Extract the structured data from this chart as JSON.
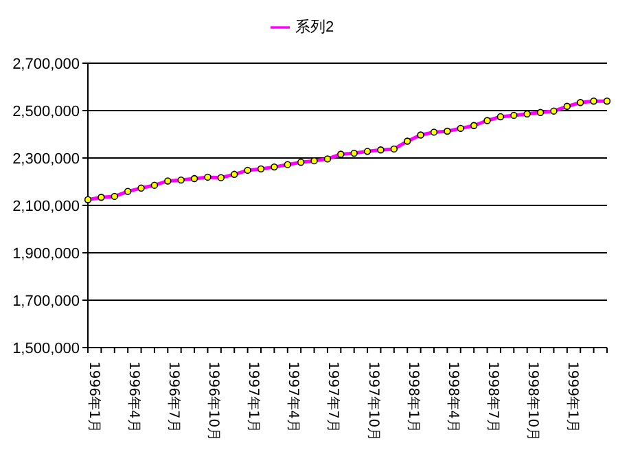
{
  "chart_data": {
    "type": "line",
    "categories": [
      "1996年1月",
      null,
      null,
      "1996年4月",
      null,
      null,
      "1996年7月",
      null,
      null,
      "1996年10月",
      null,
      null,
      "1997年1月",
      null,
      null,
      "1997年4月",
      null,
      null,
      "1997年7月",
      null,
      null,
      "1997年10月",
      null,
      null,
      "1998年1月",
      null,
      null,
      "1998年4月",
      null,
      null,
      "1998年7月",
      null,
      null,
      "1998年10月",
      null,
      null,
      "1999年1月",
      null,
      null,
      null
    ],
    "series": [
      {
        "name": "系列2",
        "color": "#ff00ff",
        "values": [
          2124000,
          2134000,
          2138000,
          2159000,
          2173000,
          2185000,
          2203000,
          2207000,
          2213000,
          2219000,
          2217000,
          2231000,
          2248000,
          2254000,
          2262000,
          2272000,
          2282000,
          2288000,
          2296000,
          2316000,
          2320000,
          2328000,
          2334000,
          2338000,
          2371000,
          2397000,
          2409000,
          2413000,
          2425000,
          2437000,
          2458000,
          2474000,
          2480000,
          2486000,
          2492000,
          2498000,
          2518000,
          2534000,
          2540000,
          2540000
        ]
      }
    ],
    "ylim": [
      1500000,
      2700000
    ],
    "yticks": [
      {
        "value": 1500000,
        "label": "1,500,000"
      },
      {
        "value": 1700000,
        "label": "1,700,000"
      },
      {
        "value": 1900000,
        "label": "1,900,000"
      },
      {
        "value": 2100000,
        "label": "2,100,000"
      },
      {
        "value": 2300000,
        "label": "2,300,000"
      },
      {
        "value": 2500000,
        "label": "2,500,000"
      },
      {
        "value": 2700000,
        "label": "2,700,000"
      }
    ],
    "grid": "y",
    "legend": "top",
    "marker": "circle",
    "line_style": "solid"
  }
}
